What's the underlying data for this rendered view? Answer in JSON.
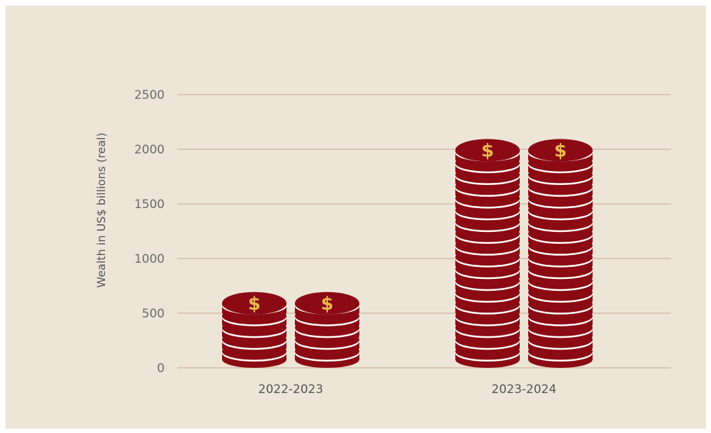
{
  "chart_data": {
    "type": "bar",
    "title": "",
    "xlabel": "",
    "ylabel": "Wealth in US$ billions (real)",
    "categories": [
      "2022-2023",
      "2023-2024"
    ],
    "values": [
      600,
      2050
    ],
    "ylim": [
      0,
      2500
    ],
    "yticks": [
      0,
      500,
      1000,
      1500,
      2000,
      2500
    ],
    "grid": true,
    "legend": "none",
    "coin_symbol": "$",
    "colors": {
      "background": "#ede6d8",
      "coin": "#8b0a14",
      "coin_stripe": "#ffffff",
      "symbol": "#e8b84a",
      "grid": "#d8b8a8"
    }
  }
}
